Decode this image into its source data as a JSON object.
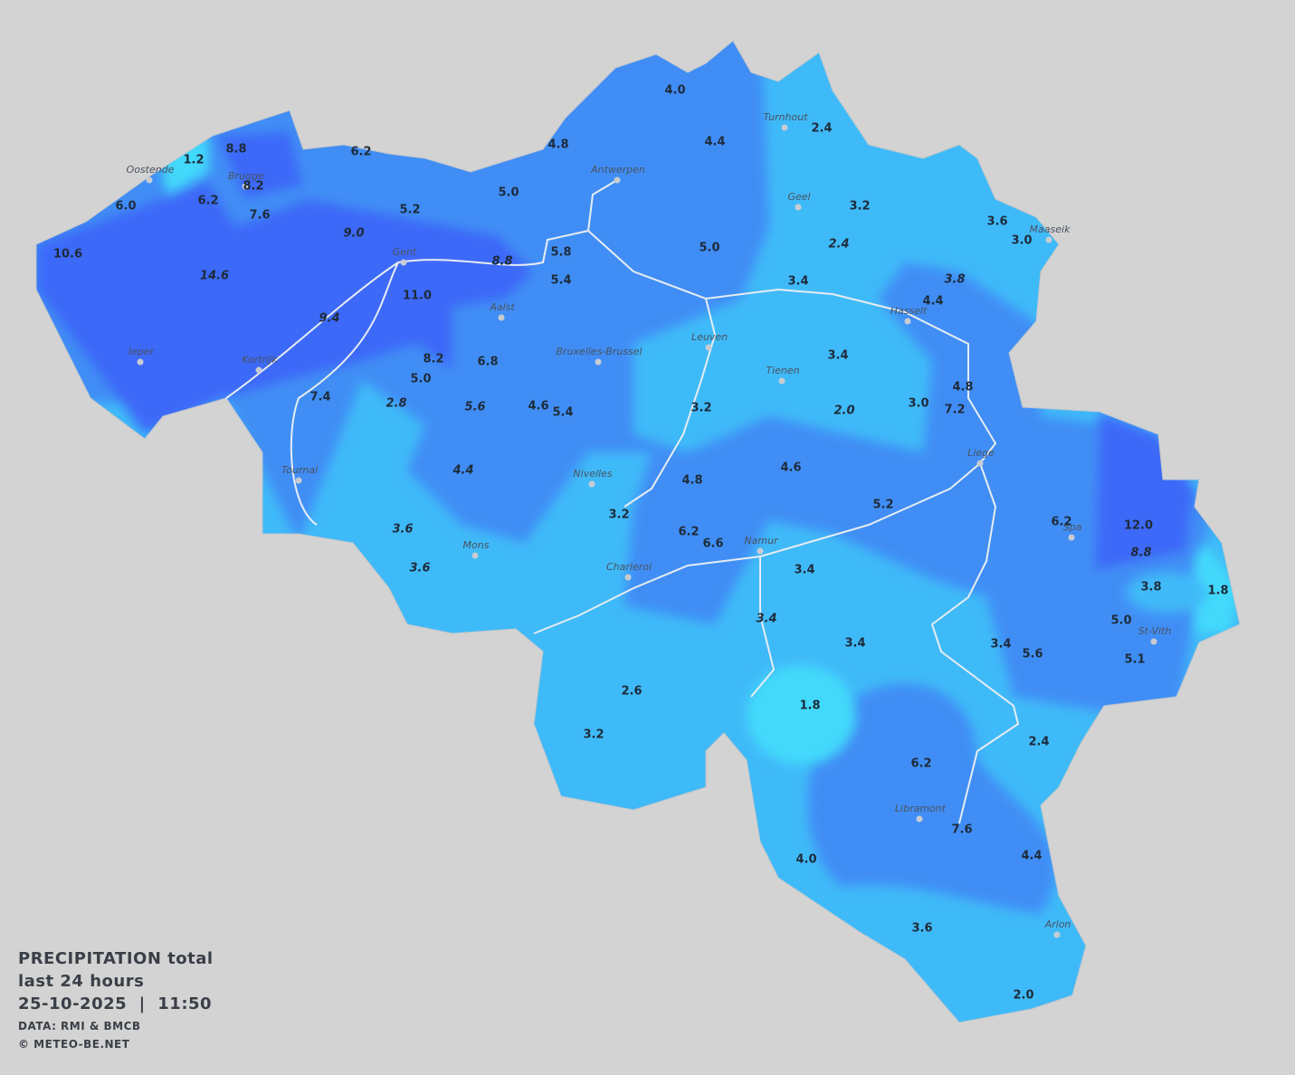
{
  "legend": {
    "title": "PRECIPITATION total",
    "period": "last 24 hours",
    "timestamp": "25-10-2025  |  11:50",
    "source": "DATA: RMI & BMCB",
    "copyright": "© METEO-BE.NET"
  },
  "cities": [
    {
      "name": "Oostende"
    },
    {
      "name": "Brugge"
    },
    {
      "name": "Antwerpen"
    },
    {
      "name": "Turnhout"
    },
    {
      "name": "Geel"
    },
    {
      "name": "Maaseik"
    },
    {
      "name": "Gent"
    },
    {
      "name": "Aalst"
    },
    {
      "name": "Hasselt"
    },
    {
      "name": "Ieper"
    },
    {
      "name": "Kortrijk"
    },
    {
      "name": "Bruxelles-Brussel"
    },
    {
      "name": "Leuven"
    },
    {
      "name": "Tienen"
    },
    {
      "name": "Liege"
    },
    {
      "name": "Tournai"
    },
    {
      "name": "Nivelles"
    },
    {
      "name": "Spa"
    },
    {
      "name": "Namur"
    },
    {
      "name": "Mons"
    },
    {
      "name": "Charleroi"
    },
    {
      "name": "St-Vith"
    },
    {
      "name": "Libramont"
    },
    {
      "name": "Arlon"
    }
  ],
  "stations": [
    {
      "value": "4.0"
    },
    {
      "value": "4.4"
    },
    {
      "value": "2.4"
    },
    {
      "value": "4.8"
    },
    {
      "value": "8.8"
    },
    {
      "value": "1.2"
    },
    {
      "value": "6.2"
    },
    {
      "value": "8.2"
    },
    {
      "value": "6.2"
    },
    {
      "value": "6.0"
    },
    {
      "value": "7.6"
    },
    {
      "value": "5.0"
    },
    {
      "value": "5.2"
    },
    {
      "value": "3.2"
    },
    {
      "value": "3.6"
    },
    {
      "value": "3.0"
    },
    {
      "value": "9.0"
    },
    {
      "value": "10.6"
    },
    {
      "value": "14.6"
    },
    {
      "value": "5.8"
    },
    {
      "value": "8.8"
    },
    {
      "value": "5.4"
    },
    {
      "value": "5.0"
    },
    {
      "value": "2.4"
    },
    {
      "value": "3.4"
    },
    {
      "value": "3.8"
    },
    {
      "value": "4.4"
    },
    {
      "value": "11.0"
    },
    {
      "value": "9.4"
    },
    {
      "value": "3.4"
    },
    {
      "value": "8.2"
    },
    {
      "value": "6.8"
    },
    {
      "value": "5.0"
    },
    {
      "value": "7.4"
    },
    {
      "value": "2.8"
    },
    {
      "value": "5.6"
    },
    {
      "value": "4.6"
    },
    {
      "value": "5.4"
    },
    {
      "value": "3.2"
    },
    {
      "value": "2.0"
    },
    {
      "value": "3.0"
    },
    {
      "value": "4.8"
    },
    {
      "value": "7.2"
    },
    {
      "value": "4.4"
    },
    {
      "value": "4.8"
    },
    {
      "value": "4.6"
    },
    {
      "value": "3.2"
    },
    {
      "value": "5.2"
    },
    {
      "value": "6.2"
    },
    {
      "value": "12.0"
    },
    {
      "value": "3.6"
    },
    {
      "value": "6.2"
    },
    {
      "value": "6.6"
    },
    {
      "value": "8.8"
    },
    {
      "value": "3.6"
    },
    {
      "value": "3.4"
    },
    {
      "value": "3.8"
    },
    {
      "value": "1.8"
    },
    {
      "value": "3.4"
    },
    {
      "value": "3.4"
    },
    {
      "value": "3.4"
    },
    {
      "value": "5.6"
    },
    {
      "value": "5.0"
    },
    {
      "value": "5.1"
    },
    {
      "value": "2.6"
    },
    {
      "value": "1.8"
    },
    {
      "value": "3.2"
    },
    {
      "value": "2.4"
    },
    {
      "value": "6.2"
    },
    {
      "value": "7.6"
    },
    {
      "value": "4.0"
    },
    {
      "value": "4.4"
    },
    {
      "value": "3.6"
    },
    {
      "value": "2.0"
    }
  ]
}
